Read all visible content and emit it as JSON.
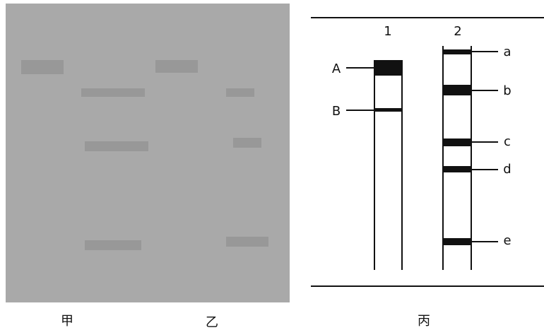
{
  "panels": [
    {
      "label": "甲"
    },
    {
      "label": "乙"
    },
    {
      "label": "丙"
    }
  ],
  "tubes": [
    {
      "label": "1",
      "bands": [
        "A",
        "B"
      ]
    },
    {
      "label": "2",
      "bands": [
        "a",
        "b",
        "c",
        "d",
        "e"
      ]
    }
  ]
}
